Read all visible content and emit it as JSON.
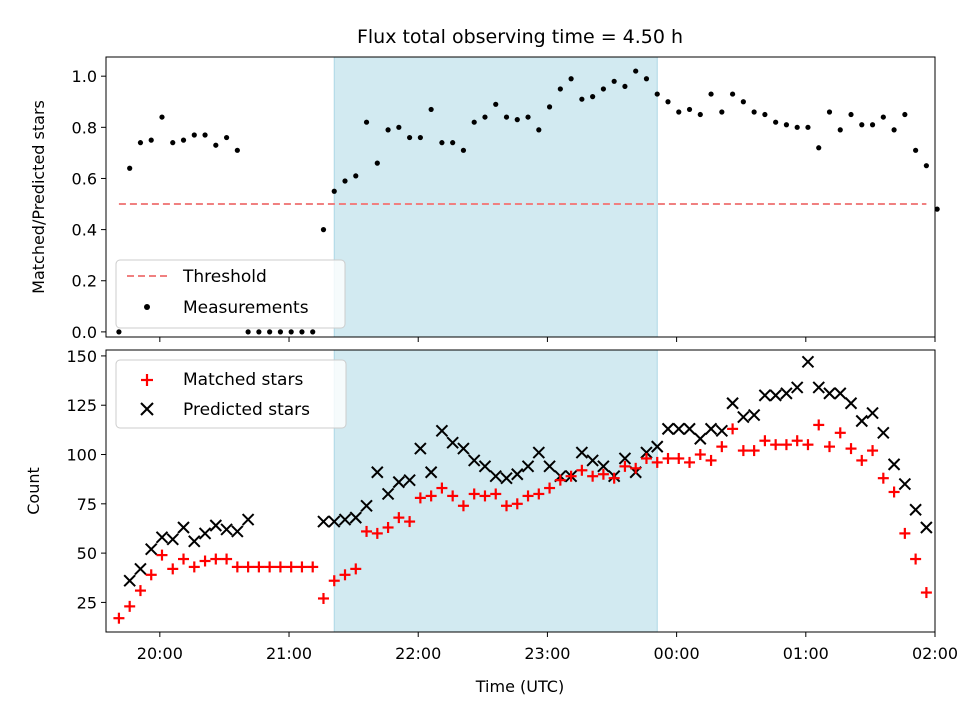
{
  "title": "Flux total observing time = 4.50 h",
  "colors": {
    "observing_window": "#add8e6",
    "threshold": "#f08080",
    "measurement": "#000000",
    "matched": "#ff0000",
    "predicted": "#000000"
  },
  "chart_data": [
    {
      "type": "scatter",
      "ylabel": "Matched/Predicted stars",
      "ylim": [
        0,
        1.07
      ],
      "yticks": [
        "0.0",
        "0.2",
        "0.4",
        "0.6",
        "0.8",
        "1.0"
      ],
      "legend_placement": "lower-left",
      "observing_window": [
        "21:21",
        "23:51"
      ],
      "threshold": {
        "name": "Threshold",
        "value": 0.5,
        "x_range": [
          "19:41",
          "01:56"
        ]
      },
      "series": [
        {
          "name": "Measurements",
          "x": [
            "19:41",
            "19:46",
            "19:51",
            "19:56",
            "20:01",
            "20:06",
            "20:11",
            "20:16",
            "20:21",
            "20:26",
            "20:31",
            "20:36",
            "20:41",
            "20:46",
            "20:51",
            "20:56",
            "21:01",
            "21:06",
            "21:11",
            "21:16",
            "21:21",
            "21:26",
            "21:31",
            "21:36",
            "21:41",
            "21:46",
            "21:51",
            "21:56",
            "22:01",
            "22:06",
            "22:11",
            "22:16",
            "22:21",
            "22:26",
            "22:31",
            "22:36",
            "22:41",
            "22:46",
            "22:51",
            "22:56",
            "23:01",
            "23:06",
            "23:11",
            "23:16",
            "23:21",
            "23:26",
            "23:31",
            "23:36",
            "23:41",
            "23:46",
            "23:51",
            "23:56",
            "00:01",
            "00:06",
            "00:11",
            "00:16",
            "00:21",
            "00:26",
            "00:31",
            "00:36",
            "00:41",
            "00:46",
            "00:51",
            "00:56",
            "01:01",
            "01:06",
            "01:11",
            "01:16",
            "01:21",
            "01:26",
            "01:31",
            "01:36",
            "01:41",
            "01:46",
            "01:51",
            "01:56"
          ],
          "y": [
            0.0,
            0.64,
            0.74,
            0.75,
            0.84,
            0.74,
            0.75,
            0.77,
            0.77,
            0.73,
            0.76,
            0.71,
            0.0,
            0.0,
            0.0,
            0.0,
            0.0,
            0.0,
            0.0,
            0.4,
            0.55,
            0.59,
            0.61,
            0.82,
            0.66,
            0.79,
            0.8,
            0.76,
            0.76,
            0.87,
            0.74,
            0.74,
            0.71,
            0.82,
            0.84,
            0.89,
            0.84,
            0.83,
            0.84,
            0.79,
            0.88,
            0.95,
            0.99,
            0.91,
            0.92,
            0.95,
            0.98,
            0.96,
            1.02,
            0.99,
            0.93,
            0.9,
            0.86,
            0.87,
            0.85,
            0.93,
            0.86,
            0.93,
            0.9,
            0.86,
            0.85,
            0.82,
            0.81,
            0.8,
            0.8,
            0.72,
            0.86,
            0.79,
            0.85,
            0.81,
            0.81,
            0.84,
            0.79,
            0.85,
            0.71,
            0.65
          ]
        }
      ],
      "extra_points": [
        {
          "x": "02:01",
          "y": 0.48
        }
      ]
    },
    {
      "type": "scatter",
      "xlabel": "Time (UTC)",
      "ylabel": "Count",
      "ylim": [
        10,
        153
      ],
      "yticks": [
        "25",
        "50",
        "75",
        "100",
        "125",
        "150"
      ],
      "xticks": [
        "20:00",
        "21:00",
        "22:00",
        "23:00",
        "00:00",
        "01:00",
        "02:00"
      ],
      "legend_placement": "upper-left",
      "observing_window": [
        "21:21",
        "23:51"
      ],
      "series": [
        {
          "name": "Matched stars",
          "marker": "plus",
          "x": [
            "19:41",
            "19:46",
            "19:51",
            "19:56",
            "20:01",
            "20:06",
            "20:11",
            "20:16",
            "20:21",
            "20:26",
            "20:31",
            "20:36",
            "20:41",
            "20:46",
            "20:51",
            "20:56",
            "21:01",
            "21:06",
            "21:11",
            "21:16",
            "21:21",
            "21:26",
            "21:31",
            "21:36",
            "21:41",
            "21:46",
            "21:51",
            "21:56",
            "22:01",
            "22:06",
            "22:11",
            "22:16",
            "22:21",
            "22:26",
            "22:31",
            "22:36",
            "22:41",
            "22:46",
            "22:51",
            "22:56",
            "23:01",
            "23:06",
            "23:11",
            "23:16",
            "23:21",
            "23:26",
            "23:31",
            "23:36",
            "23:41",
            "23:46",
            "23:51",
            "23:56",
            "00:01",
            "00:06",
            "00:11",
            "00:16",
            "00:21",
            "00:26",
            "00:31",
            "00:36",
            "00:41",
            "00:46",
            "00:51",
            "00:56",
            "01:01",
            "01:06",
            "01:11",
            "01:16",
            "01:21",
            "01:26",
            "01:31",
            "01:36",
            "01:41",
            "01:46",
            "01:51",
            "01:56"
          ],
          "y": [
            17,
            23,
            31,
            39,
            49,
            42,
            47,
            43,
            46,
            47,
            47,
            43,
            43,
            43,
            43,
            43,
            43,
            43,
            43,
            27,
            36,
            39,
            42,
            61,
            60,
            63,
            68,
            66,
            78,
            79,
            83,
            79,
            74,
            80,
            79,
            80,
            74,
            75,
            79,
            80,
            83,
            87,
            89,
            92,
            89,
            90,
            88,
            94,
            93,
            98,
            96,
            98,
            98,
            96,
            100,
            97,
            104,
            113,
            102,
            102,
            107,
            105,
            105,
            107,
            105,
            115,
            104,
            111,
            103,
            97,
            102,
            88,
            81,
            60,
            47,
            30
          ]
        },
        {
          "name": "Predicted stars",
          "marker": "x",
          "x": [
            "19:46",
            "19:51",
            "19:56",
            "20:01",
            "20:06",
            "20:11",
            "20:16",
            "20:21",
            "20:26",
            "20:31",
            "20:36",
            "20:41",
            "21:16",
            "21:21",
            "21:26",
            "21:31",
            "21:36",
            "21:41",
            "21:46",
            "21:51",
            "21:56",
            "22:01",
            "22:06",
            "22:11",
            "22:16",
            "22:21",
            "22:26",
            "22:31",
            "22:36",
            "22:41",
            "22:46",
            "22:51",
            "22:56",
            "23:01",
            "23:06",
            "23:11",
            "23:16",
            "23:21",
            "23:26",
            "23:31",
            "23:36",
            "23:41",
            "23:46",
            "23:51",
            "23:56",
            "00:01",
            "00:06",
            "00:11",
            "00:16",
            "00:21",
            "00:26",
            "00:31",
            "00:36",
            "00:41",
            "00:46",
            "00:51",
            "00:56",
            "01:01",
            "01:06",
            "01:11",
            "01:16",
            "01:21",
            "01:26",
            "01:31",
            "01:36",
            "01:41",
            "01:46",
            "01:51",
            "01:56"
          ],
          "y": [
            36,
            42,
            52,
            58,
            57,
            63,
            56,
            60,
            64,
            62,
            61,
            67,
            66,
            66,
            67,
            68,
            74,
            91,
            80,
            86,
            87,
            103,
            91,
            112,
            106,
            103,
            97,
            94,
            89,
            88,
            90,
            94,
            101,
            94,
            89,
            89,
            101,
            97,
            94,
            89,
            98,
            91,
            101,
            104,
            113,
            113,
            113,
            108,
            113,
            112,
            126,
            119,
            120,
            130,
            130,
            131,
            134,
            147,
            134,
            131,
            131,
            126,
            117,
            121,
            111,
            95,
            85,
            72,
            63
          ]
        }
      ]
    }
  ]
}
